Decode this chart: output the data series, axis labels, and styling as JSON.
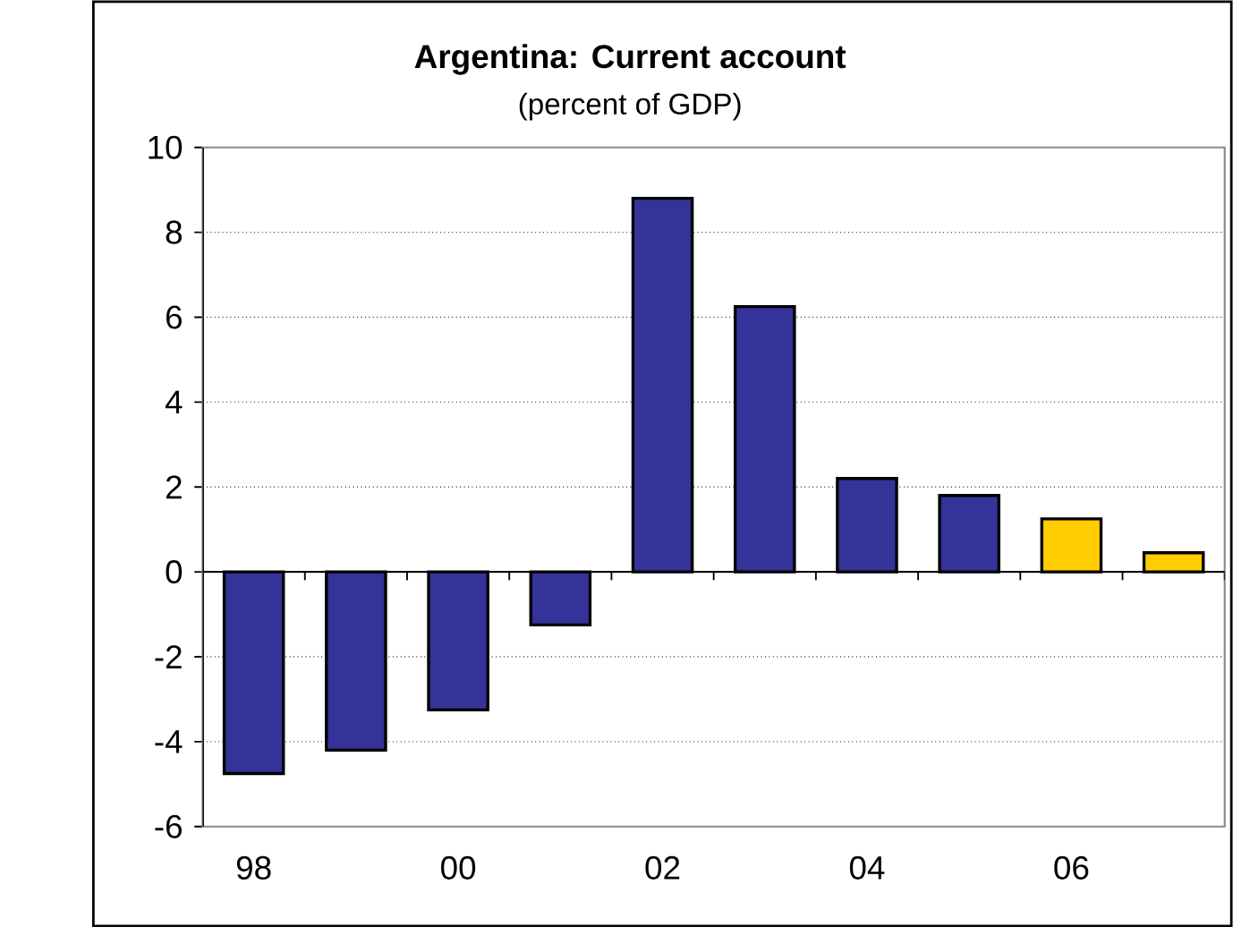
{
  "chart_data": {
    "type": "bar",
    "title": "Argentina: Current account",
    "subtitle": "(percent of GDP)",
    "categories": [
      "98",
      null,
      "00",
      null,
      "02",
      null,
      "04",
      null,
      "06",
      null
    ],
    "values": [
      -4.75,
      -4.2,
      -3.25,
      -1.25,
      8.8,
      6.25,
      2.2,
      1.8,
      1.25,
      0.45
    ],
    "colors": [
      "#333399",
      "#333399",
      "#333399",
      "#333399",
      "#333399",
      "#333399",
      "#333399",
      "#333399",
      "#ffcc00",
      "#ffcc00"
    ],
    "ylim": [
      -6,
      10
    ],
    "yticks": [
      -6,
      -4,
      -2,
      0,
      2,
      4,
      6,
      8,
      10
    ],
    "grid": "y"
  }
}
